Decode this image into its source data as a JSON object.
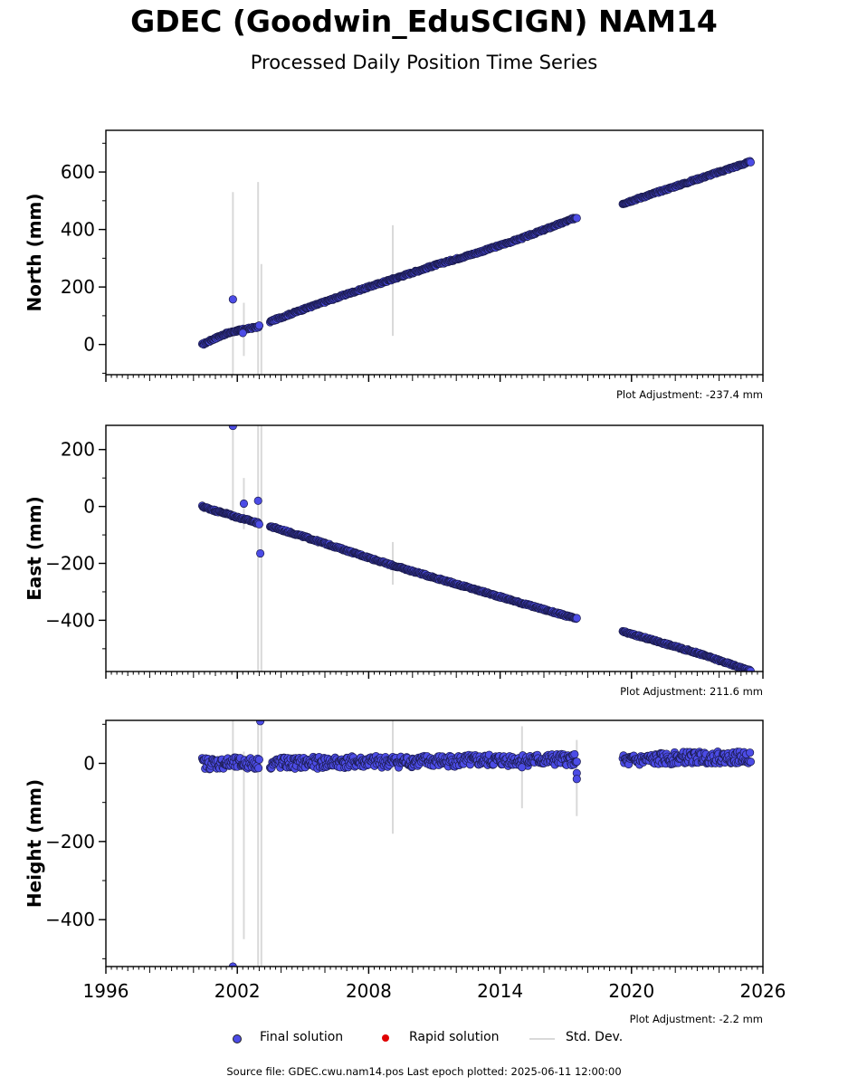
{
  "header": {
    "title": "GDEC (Goodwin_EduSCIGN) NAM14",
    "subtitle": "Processed Daily Position Time Series"
  },
  "legend": {
    "final_label": "Final solution",
    "rapid_label": "Rapid solution",
    "std_label": "Std. Dev.",
    "final_color": "#4c4ce6",
    "rapid_color": "#e00000",
    "std_color": "#d9d9d9"
  },
  "footer": {
    "source": "Source file: GDEC.cwu.nam14.pos  Last epoch plotted: 2025-06-11 12:00:00"
  },
  "chart_data": [
    {
      "type": "scatter",
      "ylabel": "North (mm)",
      "adjustment": "Plot Adjustment: -237.4 mm",
      "xlim": [
        1996,
        2026
      ],
      "ylim": [
        -105,
        745
      ],
      "yticks": [
        0,
        200,
        400,
        600
      ],
      "ytick_labels": [
        "0",
        "200",
        "400",
        "600"
      ],
      "series": [
        {
          "segments": [
            {
              "x": [
                2000.4,
                2001.0,
                2001.5,
                2002.0,
                2002.5,
                2003.0
              ],
              "y": [
                0,
                22,
                38,
                48,
                55,
                62
              ]
            },
            {
              "x": [
                2003.5,
                2005.0,
                2007.0,
                2009.0,
                2011.0,
                2013.0,
                2015.0,
                2017.5
              ],
              "y": [
                80,
                122,
                175,
                225,
                275,
                320,
                370,
                442
              ]
            },
            {
              "x": [
                2019.6,
                2021.0,
                2023.0,
                2025.44
              ],
              "y": [
                490,
                525,
                575,
                636
              ]
            }
          ],
          "outliers": {
            "x": [
              2001.8,
              2002.25,
              2003.0
            ],
            "y": [
              157,
              40,
              66
            ]
          }
        }
      ],
      "error_bars": [
        {
          "x": 2001.8,
          "low": -115,
          "high": 530
        },
        {
          "x": 2002.3,
          "low": -40,
          "high": 145
        },
        {
          "x": 2002.95,
          "low": -115,
          "high": 565
        },
        {
          "x": 2003.1,
          "low": -115,
          "high": 280
        },
        {
          "x": 2009.1,
          "low": 30,
          "high": 415
        }
      ]
    },
    {
      "type": "scatter",
      "ylabel": "East (mm)",
      "adjustment": "Plot Adjustment: 211.6 mm",
      "xlim": [
        1996,
        2026
      ],
      "ylim": [
        -580,
        285
      ],
      "yticks": [
        -400,
        -200,
        0,
        200
      ],
      "ytick_labels": [
        "−400",
        "−200",
        "0",
        "200"
      ],
      "series": [
        {
          "segments": [
            {
              "x": [
                2000.4,
                2001.0,
                2001.5,
                2002.0,
                2002.5,
                2003.0
              ],
              "y": [
                0,
                -15,
                -25,
                -38,
                -48,
                -60
              ]
            },
            {
              "x": [
                2003.5,
                2005.0,
                2007.0,
                2009.0,
                2011.0,
                2013.0,
                2015.0,
                2017.5
              ],
              "y": [
                -70,
                -105,
                -155,
                -205,
                -250,
                -295,
                -340,
                -395
              ]
            },
            {
              "x": [
                2019.6,
                2021.0,
                2023.0,
                2025.44
              ],
              "y": [
                -440,
                -470,
                -515,
                -578
              ]
            }
          ],
          "outliers": {
            "x": [
              2001.8,
              2002.3,
              2002.95,
              2003.05
            ],
            "y": [
              283,
              10,
              20,
              -165
            ]
          }
        }
      ],
      "error_bars": [
        {
          "x": 2001.8,
          "low": -40,
          "high": 290
        },
        {
          "x": 2002.3,
          "low": -80,
          "high": 100
        },
        {
          "x": 2002.95,
          "low": -585,
          "high": 290
        },
        {
          "x": 2003.1,
          "low": -585,
          "high": 290
        },
        {
          "x": 2009.1,
          "low": -275,
          "high": -125
        },
        {
          "x": 2015.0,
          "low": -360,
          "high": -330
        }
      ]
    },
    {
      "type": "scatter",
      "ylabel": "Height (mm)",
      "adjustment": "Plot Adjustment: -2.2 mm",
      "xlim": [
        1996,
        2026
      ],
      "ylim": [
        -520,
        110
      ],
      "yticks": [
        -400,
        -200,
        0
      ],
      "ytick_labels": [
        "−400",
        "−200",
        "0"
      ],
      "xticks": [
        1996,
        2002,
        2008,
        2014,
        2020,
        2026
      ],
      "xtick_labels": [
        "1996",
        "2002",
        "2008",
        "2014",
        "2020",
        "2026"
      ],
      "series": [
        {
          "segments": [
            {
              "x": [
                2000.4,
                2001.5,
                2003.0
              ],
              "y": [
                0,
                0,
                0
              ]
            },
            {
              "x": [
                2003.5,
                2010.0,
                2017.5
              ],
              "y": [
                0,
                5,
                10
              ]
            },
            {
              "x": [
                2019.6,
                2022.5,
                2025.44
              ],
              "y": [
                5,
                15,
                15
              ]
            }
          ],
          "outliers": {
            "x": [
              2001.8,
              2003.05,
              2015.0,
              2017.5,
              2017.5
            ],
            "y": [
              -520,
              108,
              -10,
              -25,
              -40
            ]
          }
        }
      ],
      "error_bars": [
        {
          "x": 2001.8,
          "low": -525,
          "high": 115
        },
        {
          "x": 2002.3,
          "low": -450,
          "high": 30
        },
        {
          "x": 2002.95,
          "low": -525,
          "high": 115
        },
        {
          "x": 2003.1,
          "low": -525,
          "high": 115
        },
        {
          "x": 2009.1,
          "low": -180,
          "high": 115
        },
        {
          "x": 2015.0,
          "low": -115,
          "high": 95
        },
        {
          "x": 2017.5,
          "low": -135,
          "high": 60
        }
      ]
    }
  ]
}
